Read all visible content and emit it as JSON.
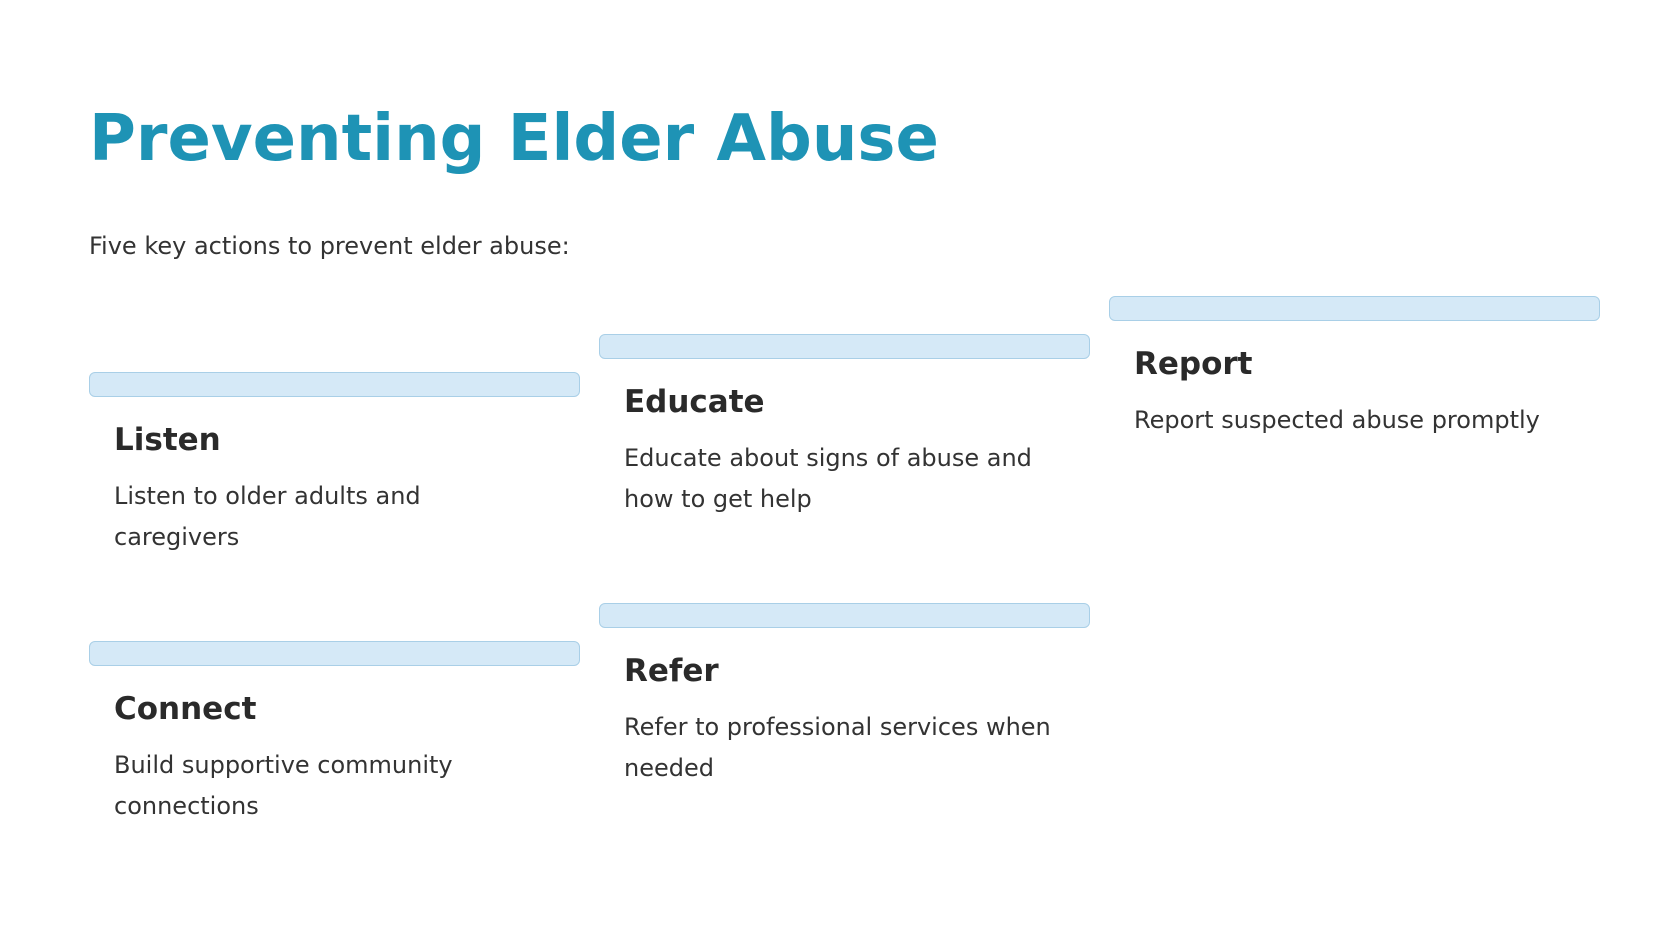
{
  "slide": {
    "title": "Preventing Elder Abuse",
    "intro": "Five key actions to prevent elder abuse:"
  },
  "actions": [
    {
      "heading": "Listen",
      "description": "Listen to older adults and caregivers"
    },
    {
      "heading": "Educate",
      "description": "Educate about signs of abuse and how to get help"
    },
    {
      "heading": "Report",
      "description": "Report suspected abuse promptly"
    },
    {
      "heading": "Connect",
      "description": "Build supportive community connections"
    },
    {
      "heading": "Refer",
      "description": "Refer to professional services when needed"
    }
  ],
  "colors": {
    "title": "#1e93b5",
    "bar_fill": "#d5e9f7",
    "bar_border": "#a9cfe7",
    "text": "#2a2a2a"
  }
}
